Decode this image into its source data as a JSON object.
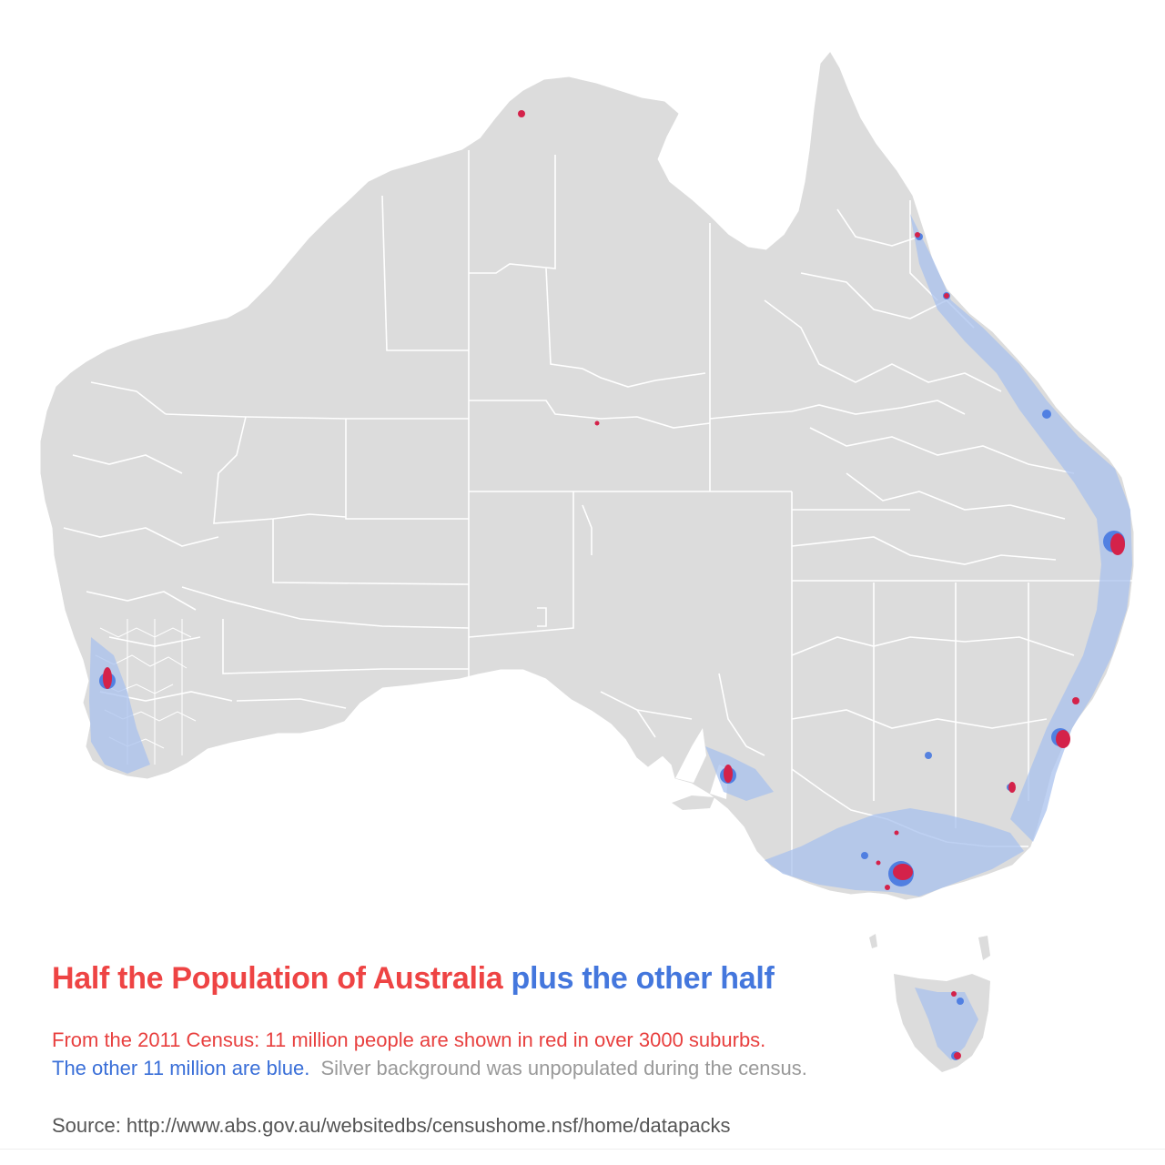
{
  "title": {
    "part_red": "Half the Population of Australia",
    "part_blue": "plus the other half"
  },
  "subtitle": {
    "line1": "From the 2011 Census: 11 million people are shown in red in over 3000 suburbs.",
    "line2_blue": "The other 11 million are blue.",
    "line2_grey": "Silver background was unpopulated during the census."
  },
  "source": "Source: http://www.abs.gov.au/websitedbs/censushome.nsf/home/datapacks",
  "colors": {
    "land": "#dcdcdc",
    "boundary": "#ffffff",
    "red_half": "#d4224a",
    "blue_half": "#3f73e0",
    "blue_light": "#a9c2ee"
  },
  "map": {
    "red_half_population": "11 million",
    "blue_half_population": "11 million",
    "red_suburbs": "over 3000"
  }
}
